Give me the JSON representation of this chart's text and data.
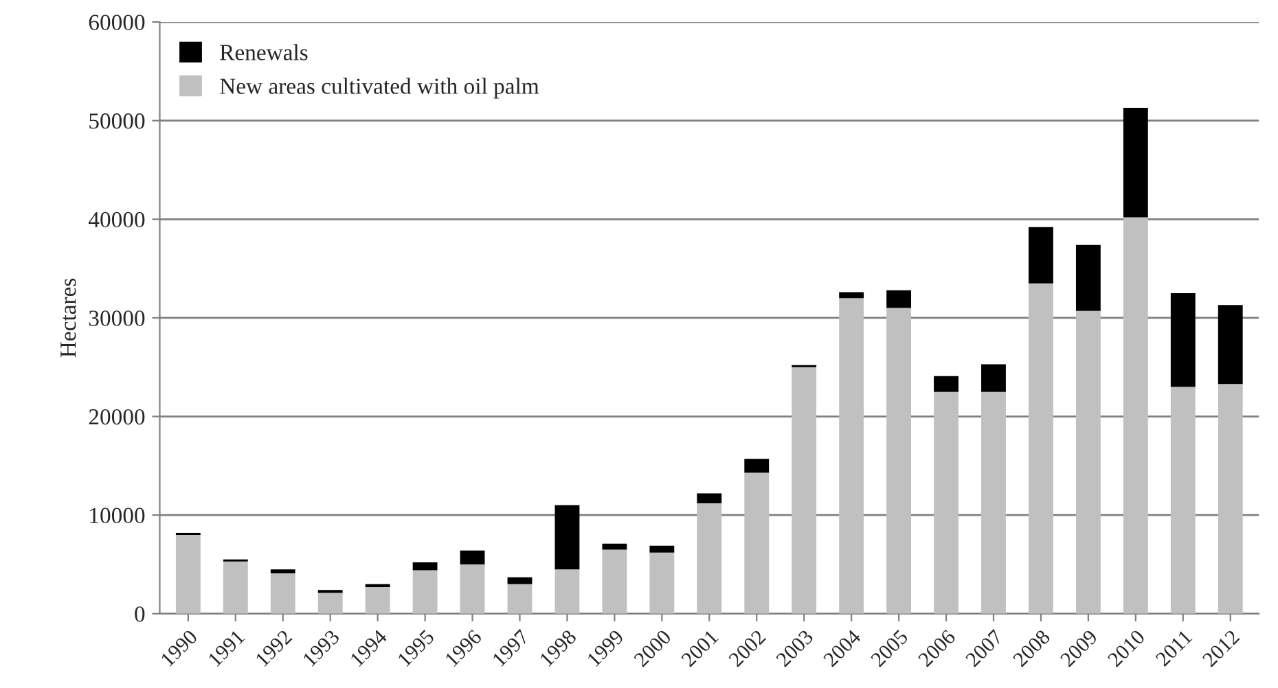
{
  "chart_data": {
    "type": "bar",
    "ylabel": "Hectares",
    "stacked": true,
    "categories": [
      "1990",
      "1991",
      "1992",
      "1993",
      "1994",
      "1995",
      "1996",
      "1997",
      "1998",
      "1999",
      "2000",
      "2001",
      "2002",
      "2003",
      "2004",
      "2005",
      "2006",
      "2007",
      "2008",
      "2009",
      "2010",
      "2011",
      "2012"
    ],
    "series": [
      {
        "name": "New areas cultivated with oil palm",
        "color": "#c0c0c0",
        "values": [
          8000,
          5300,
          4100,
          2100,
          2700,
          4400,
          5000,
          3000,
          4500,
          6500,
          6200,
          11200,
          14300,
          25000,
          32000,
          31000,
          22500,
          22500,
          33500,
          30700,
          40200,
          23000,
          23300
        ]
      },
      {
        "name": "Renewals",
        "color": "#000000",
        "values": [
          200,
          200,
          400,
          300,
          300,
          800,
          1400,
          700,
          6500,
          600,
          700,
          1000,
          1400,
          200,
          600,
          1800,
          1600,
          2800,
          5700,
          6700,
          11100,
          9500,
          8000
        ]
      }
    ],
    "ylim": [
      0,
      60000
    ],
    "yticks": [
      0,
      10000,
      20000,
      30000,
      40000,
      50000,
      60000
    ],
    "grid": "y",
    "legend": "top left"
  }
}
